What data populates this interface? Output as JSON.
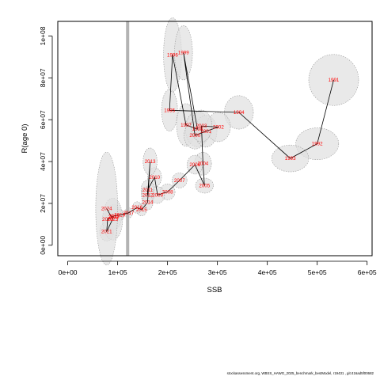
{
  "chart_data": {
    "type": "scatter",
    "title": "",
    "xlabel": "SSB",
    "ylabel": "R(age 0)",
    "xlim": [
      -20000,
      610000
    ],
    "ylim": [
      -5000000,
      107000000
    ],
    "xticks": [
      "0e+00",
      "1e+05",
      "2e+05",
      "3e+05",
      "4e+05",
      "5e+05",
      "6e+05"
    ],
    "yticks": [
      "0e+00",
      "2e+07",
      "4e+07",
      "6e+07",
      "8e+07",
      "1e+08"
    ],
    "reference_line": {
      "x": 120000,
      "color": "#b3b3b3"
    },
    "path_color": "#000000",
    "label_color": "#ff0000",
    "ellipse_fill": "#e0e0e0",
    "ellipse_stroke": "#999999",
    "series": [
      {
        "values": [
          {
            "year": "1991",
            "ssb": 533000,
            "rec": 79000000,
            "rx": 50000,
            "ry": 12200000
          },
          {
            "year": "1992",
            "ssb": 500000,
            "rec": 48500000,
            "rx": 43000,
            "ry": 7600000
          },
          {
            "year": "1993",
            "ssb": 446000,
            "rec": 41500000,
            "rx": 37000,
            "ry": 6400000
          },
          {
            "year": "1994",
            "ssb": 343000,
            "rec": 63500000,
            "rx": 29000,
            "ry": 8000000
          },
          {
            "year": "1995",
            "ssb": 204000,
            "rec": 64500000,
            "rx": 16000,
            "ry": 10000000
          },
          {
            "year": "1996",
            "ssb": 210000,
            "rec": 91000000,
            "rx": 18000,
            "ry": 17700000
          },
          {
            "year": "1997",
            "ssb": 237000,
            "rec": 57500000,
            "rx": 19000,
            "ry": 10200000
          },
          {
            "year": "1998",
            "ssb": 260000,
            "rec": 55500000,
            "rx": 24000,
            "ry": 8500000
          },
          {
            "year": "1999",
            "ssb": 232000,
            "rec": 92000000,
            "rx": 18000,
            "ry": 13000000
          },
          {
            "year": "2000",
            "ssb": 255000,
            "rec": 52500000,
            "rx": 22000,
            "ry": 6500000
          },
          {
            "year": "2001",
            "ssb": 277000,
            "rec": 54500000,
            "rx": 22000,
            "ry": 7600000
          },
          {
            "year": "2002",
            "ssb": 302000,
            "rec": 56500000,
            "rx": 24000,
            "ry": 7000000
          },
          {
            "year": "2003",
            "ssb": 268000,
            "rec": 57000000,
            "rx": 21000,
            "ry": 7600000
          },
          {
            "year": "2004",
            "ssb": 271000,
            "rec": 39000000,
            "rx": 17000,
            "ry": 5500000
          },
          {
            "year": "2005",
            "ssb": 274000,
            "rec": 28500000,
            "rx": 18000,
            "ry": 3600000
          },
          {
            "year": "2006",
            "ssb": 255000,
            "rec": 38500000,
            "rx": 16000,
            "ry": 4500000
          },
          {
            "year": "2007",
            "ssb": 224000,
            "rec": 31000000,
            "rx": 15000,
            "ry": 3600000
          },
          {
            "year": "2008",
            "ssb": 200000,
            "rec": 25500000,
            "rx": 15000,
            "ry": 3800000
          },
          {
            "year": "2009",
            "ssb": 180000,
            "rec": 24000000,
            "rx": 14000,
            "ry": 4000000
          },
          {
            "year": "2010",
            "ssb": 174000,
            "rec": 32500000,
            "rx": 14000,
            "ry": 4600000
          },
          {
            "year": "2011",
            "ssb": 160000,
            "rec": 26500000,
            "rx": 13000,
            "ry": 4600000
          },
          {
            "year": "2012",
            "ssb": 160000,
            "rec": 24000000,
            "rx": 13000,
            "ry": 4000000
          },
          {
            "year": "2013",
            "ssb": 165000,
            "rec": 40000000,
            "rx": 14000,
            "ry": 6500000
          },
          {
            "year": "2014",
            "ssb": 160000,
            "rec": 20500000,
            "rx": 11000,
            "ry": 3600000
          },
          {
            "year": "2015",
            "ssb": 148000,
            "rec": 17000000,
            "rx": 10000,
            "ry": 3000000
          },
          {
            "year": "2016",
            "ssb": 139000,
            "rec": 18000000,
            "rx": 9000,
            "ry": 2800000
          },
          {
            "year": "2017",
            "ssb": 122000,
            "rec": 15500000,
            "rx": 8000,
            "ry": 2500000
          },
          {
            "year": "2018",
            "ssb": 104000,
            "rec": 14500000,
            "rx": 9000,
            "ry": 2600000
          },
          {
            "year": "2019",
            "ssb": 93000,
            "rec": 14000000,
            "rx": 10000,
            "ry": 3200000
          },
          {
            "year": "2020",
            "ssb": 80000,
            "rec": 12500000,
            "rx": 11000,
            "ry": 3800000
          },
          {
            "year": "2021",
            "ssb": 78000,
            "rec": 6500000,
            "rx": 14000,
            "ry": 4500000
          },
          {
            "year": "2022",
            "ssb": 92000,
            "rec": 13500000,
            "rx": 16000,
            "ry": 6000000
          },
          {
            "year": "2023",
            "ssb": 90000,
            "rec": 12500000,
            "rx": 20000,
            "ry": 10000000
          },
          {
            "year": "2024",
            "ssb": 78000,
            "rec": 17500000,
            "rx": 22000,
            "ry": 27000000
          }
        ]
      }
    ]
  },
  "footer_text": "stockassessment.org, WBSS_HAWG_2025_benchmark_bestModel, r19431 , git:416ad5f00682"
}
